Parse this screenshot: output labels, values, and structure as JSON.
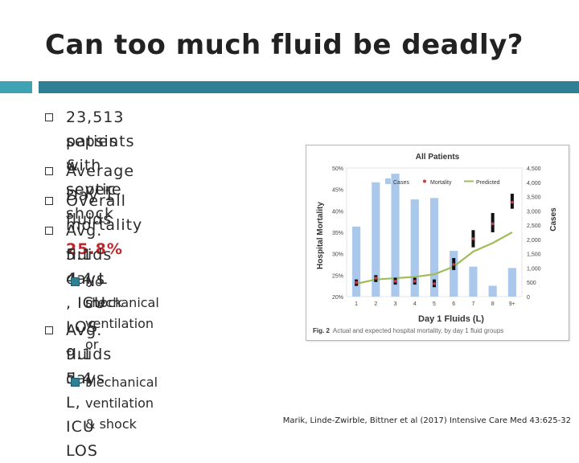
{
  "slide": {
    "title": "Can too much fluid be deadly?",
    "bullets": [
      {
        "lines": [
          "23,513 patients with severe",
          "sepsis & septic shock"
        ]
      },
      {
        "lines": [
          "Average Day 1 fluids"
        ]
      },
      {
        "prefix": "Overall mortality ",
        "highlight": "25.8%"
      },
      {
        "lines": [
          "Avg. fluids 4.4 L , ICU LOS",
          "5.1 days"
        ],
        "sub": [
          "No mechanical ventilation or",
          "shock"
        ]
      },
      {
        "lines": [
          "Avg. fluids 5.4 L, ICU LOS",
          "9.1 days"
        ],
        "sub": [
          "Mechanical ventilation & shock"
        ]
      }
    ],
    "citation": "Marik, Linde-Zwirble, Bittner et al (2017) Intensive Care Med 43:625-32"
  },
  "chart_data": {
    "type": "bar",
    "title": "All Patients",
    "xlabel": "Day 1 Fluids (L)",
    "ylabel": "Hospital Mortality",
    "y2label": "Cases",
    "categories": [
      "1",
      "2",
      "3",
      "4",
      "5",
      "6",
      "7",
      "8",
      "9+"
    ],
    "ylim": [
      20,
      50
    ],
    "y2lim": [
      0,
      4500
    ],
    "yticks": [
      "20%",
      "25%",
      "30%",
      "35%",
      "40%",
      "45%",
      "50%"
    ],
    "y2ticks": [
      "0",
      "500",
      "1,000",
      "1,500",
      "2,000",
      "2,500",
      "3,000",
      "3,500",
      "4,000",
      "4,500"
    ],
    "legend": [
      "Cases",
      "Mortality",
      "Predicted"
    ],
    "series": [
      {
        "name": "Cases",
        "axis": "right",
        "values": [
          2450,
          4000,
          4300,
          3400,
          3450,
          1600,
          1050,
          380,
          1000
        ]
      },
      {
        "name": "Mortality",
        "axis": "left",
        "values": [
          23.3,
          24.3,
          23.6,
          23.6,
          23.0,
          27.5,
          33.5,
          37.0,
          42.0
        ],
        "ci_low": [
          22.5,
          23.4,
          22.8,
          22.8,
          22.2,
          26.2,
          31.5,
          35.0,
          40.5
        ],
        "ci_high": [
          24.0,
          25.0,
          24.4,
          24.4,
          24.0,
          29.0,
          35.5,
          39.5,
          44.0
        ]
      },
      {
        "name": "Predicted",
        "axis": "left",
        "values": [
          23.0,
          24.0,
          24.3,
          24.6,
          25.2,
          27.0,
          30.5,
          32.5,
          35.0
        ]
      }
    ],
    "caption_label": "Fig. 2",
    "caption_text": "Actual and expected hospital mortality, by day 1 fluid groups",
    "colors": {
      "bars": "#a9c8ec",
      "mortality": "#c83f4a",
      "predicted": "#9fbd5b",
      "ci": "#111111"
    }
  }
}
